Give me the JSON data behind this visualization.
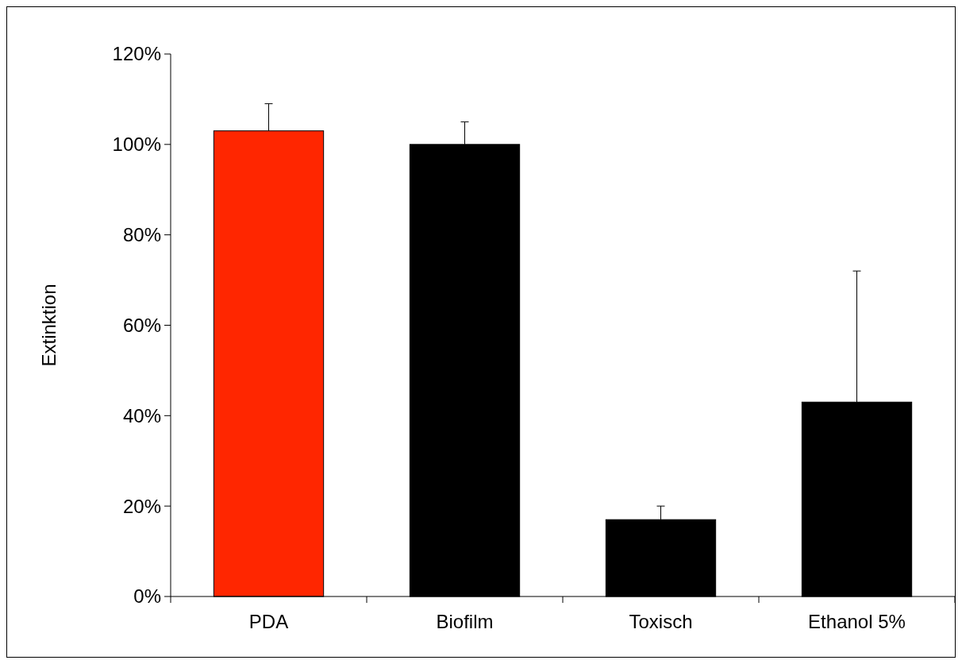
{
  "chart_data": {
    "type": "bar",
    "ylabel": "Extinktion",
    "categories": [
      "PDA",
      "Biofilm",
      "Toxisch",
      "Ethanol 5%"
    ],
    "values": [
      103,
      100,
      17,
      43
    ],
    "colors": [
      "#ff2600",
      "#000000",
      "#000000",
      "#000000"
    ],
    "errors": [
      [
        103,
        109
      ],
      [
        100,
        105
      ],
      [
        17,
        20
      ],
      [
        43,
        72
      ]
    ],
    "ylim": [
      0,
      120
    ],
    "yticks": [
      {
        "value": 0,
        "label": "0%"
      },
      {
        "value": 20,
        "label": "20%"
      },
      {
        "value": 40,
        "label": "40%"
      },
      {
        "value": 60,
        "label": "60%"
      },
      {
        "value": 80,
        "label": "80%"
      },
      {
        "value": 100,
        "label": "100%"
      },
      {
        "value": 120,
        "label": "120%"
      }
    ],
    "grid": false
  }
}
